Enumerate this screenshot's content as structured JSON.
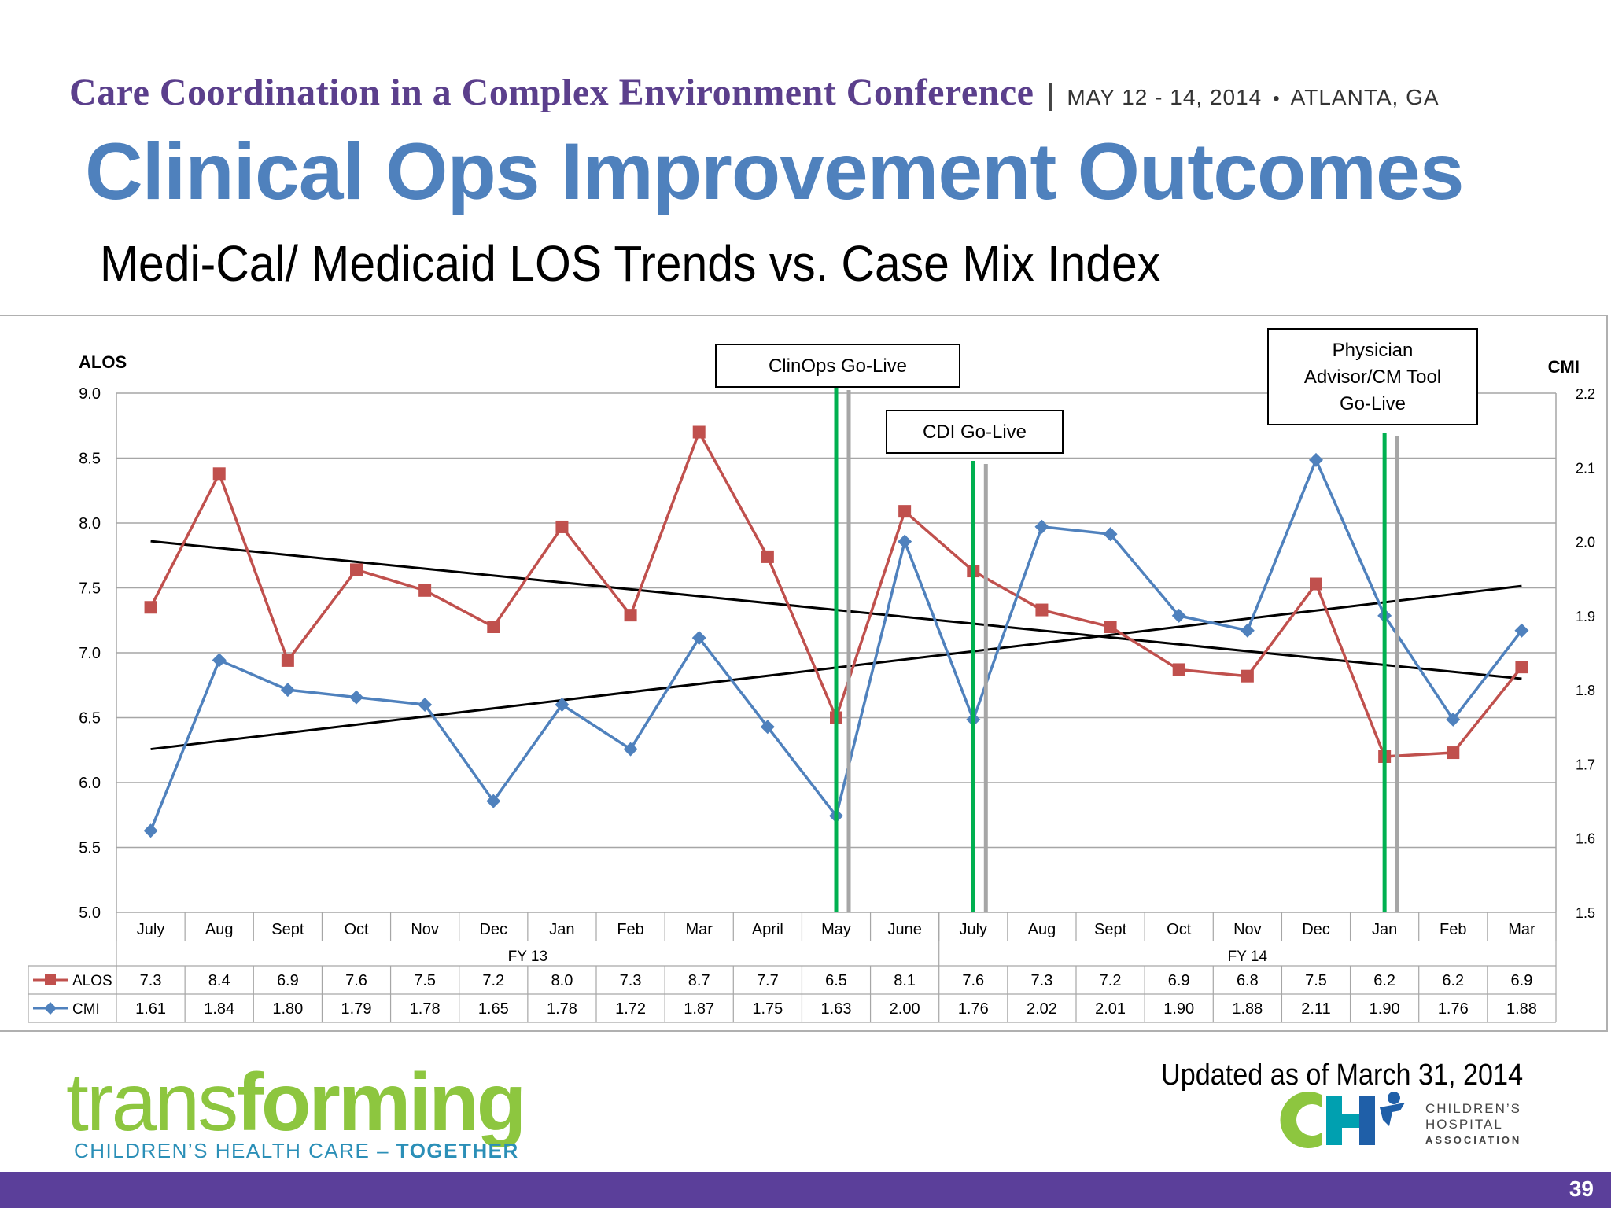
{
  "header": {
    "conference": "Care Coordination in a Complex Environment Conference",
    "separator": "|",
    "dates": "MAY 12 - 14, 2014",
    "dot": "•",
    "location": "ATLANTA, GA"
  },
  "title": "Clinical Ops Improvement Outcomes",
  "subtitle": "Medi-Cal/ Medicaid LOS Trends vs. Case Mix Index",
  "chart_data": {
    "type": "line",
    "ylabel_left": "ALOS",
    "ylabel_right": "CMI",
    "ylim_left": [
      5.0,
      9.0
    ],
    "ylim_right": [
      1.5,
      2.2
    ],
    "yticks_left": [
      "9.0",
      "8.5",
      "8.0",
      "7.5",
      "7.0",
      "6.5",
      "6.0",
      "5.5",
      "5.0"
    ],
    "yticks_right": [
      "2.2",
      "2.1",
      "2.0",
      "1.9",
      "1.8",
      "1.7",
      "1.6",
      "1.5"
    ],
    "categories": [
      "July",
      "Aug",
      "Sept",
      "Oct",
      "Nov",
      "Dec",
      "Jan",
      "Feb",
      "Mar",
      "April",
      "May",
      "June",
      "July",
      "Aug",
      "Sept",
      "Oct",
      "Nov",
      "Dec",
      "Jan",
      "Feb",
      "Mar"
    ],
    "groups": [
      {
        "label": "FY 13",
        "start": 0,
        "end": 11
      },
      {
        "label": "FY 14",
        "start": 12,
        "end": 20
      }
    ],
    "series": [
      {
        "name": "ALOS",
        "axis": "left",
        "color": "#c0504d",
        "marker": "square",
        "values": [
          7.35,
          8.38,
          6.94,
          7.64,
          7.48,
          7.2,
          7.97,
          7.29,
          8.7,
          7.74,
          6.5,
          8.09,
          7.63,
          7.33,
          7.2,
          6.87,
          6.82,
          7.53,
          6.2,
          6.23,
          6.89
        ],
        "labels": [
          "7.3",
          "8.4",
          "6.9",
          "7.6",
          "7.5",
          "7.2",
          "8.0",
          "7.3",
          "8.7",
          "7.7",
          "6.5",
          "8.1",
          "7.6",
          "7.3",
          "7.2",
          "6.9",
          "6.8",
          "7.5",
          "6.2",
          "6.2",
          "6.9"
        ]
      },
      {
        "name": "CMI",
        "axis": "right",
        "color": "#4f81bd",
        "marker": "diamond",
        "values": [
          1.61,
          1.84,
          1.8,
          1.79,
          1.78,
          1.65,
          1.78,
          1.72,
          1.87,
          1.75,
          1.63,
          2.0,
          1.76,
          2.02,
          2.01,
          1.9,
          1.88,
          2.11,
          1.9,
          1.76,
          1.88
        ],
        "labels": [
          "1.61",
          "1.84",
          "1.80",
          "1.79",
          "1.78",
          "1.65",
          "1.78",
          "1.72",
          "1.87",
          "1.75",
          "1.63",
          "2.00",
          "1.76",
          "2.02",
          "2.01",
          "1.90",
          "1.88",
          "2.11",
          "1.90",
          "1.76",
          "1.88"
        ]
      }
    ],
    "trendlines": [
      {
        "of": "ALOS",
        "axis": "left",
        "start": 7.86,
        "end": 6.8,
        "color": "#000000"
      },
      {
        "of": "CMI",
        "axis": "right",
        "start": 1.72,
        "end": 1.94,
        "color": "#000000"
      }
    ],
    "annotations": [
      {
        "text": [
          "ClinOps Go-Live"
        ],
        "after_index": 10
      },
      {
        "text": [
          "CDI Go-Live"
        ],
        "after_index": 12
      },
      {
        "text": [
          "Physician",
          "Advisor/CM Tool",
          "Go-Live"
        ],
        "after_index": 18
      }
    ],
    "event_line_colors": {
      "primary": "#00b050",
      "secondary": "#a6a6a6"
    },
    "grid": true,
    "legend": "data-table"
  },
  "updated": "Updated as of  March 31, 2014",
  "logo_left": {
    "word_light": "trans",
    "word_bold": "forming",
    "tag": "CHILDREN’S HEALTH CARE",
    "tag_dash": " – ",
    "tag_bold": "TOGETHER"
  },
  "logo_right": {
    "line1": "CHILDREN’S",
    "line2": "HOSPITAL",
    "line3": "ASSOCIATION"
  },
  "page_number": "39"
}
